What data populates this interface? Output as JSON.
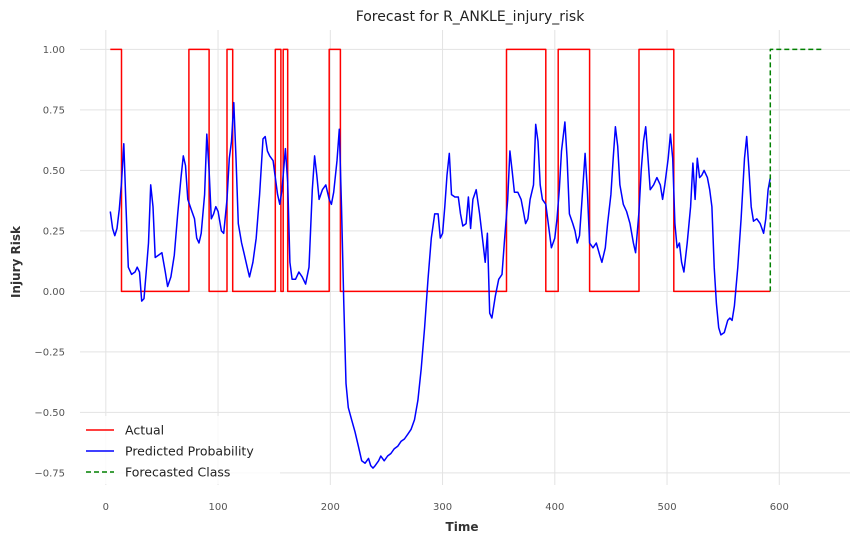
{
  "chart_data": {
    "type": "line",
    "title": "Forecast for R_ANKLE_injury_risk",
    "xlabel": "Time",
    "ylabel": "Injury Risk",
    "xlim": [
      -23,
      663
    ],
    "ylim": [
      -0.8,
      1.08
    ],
    "xticks": [
      0,
      100,
      200,
      300,
      400,
      500,
      600
    ],
    "xtick_labels": [
      "0",
      "100",
      "200",
      "300",
      "400",
      "500",
      "600"
    ],
    "yticks": [
      1.0,
      0.75,
      0.5,
      0.25,
      0.0,
      -0.25,
      -0.5,
      -0.75
    ],
    "ytick_labels": [
      "1.00",
      "0.75",
      "0.50",
      "0.25",
      "0.00",
      "−0.25",
      "−0.50",
      "−0.75"
    ],
    "grid": true,
    "legend_position": "lower-left",
    "series": [
      {
        "name": "Actual",
        "color": "#ff0000",
        "style": "solid",
        "step": true,
        "points": [
          [
            4,
            1
          ],
          [
            14,
            1
          ],
          [
            14,
            0
          ],
          [
            74,
            0
          ],
          [
            74,
            1
          ],
          [
            92,
            1
          ],
          [
            92,
            0
          ],
          [
            108,
            0
          ],
          [
            108,
            1
          ],
          [
            113,
            1
          ],
          [
            113,
            0
          ],
          [
            151,
            0
          ],
          [
            151,
            1
          ],
          [
            156,
            1
          ],
          [
            156,
            0
          ],
          [
            158,
            0
          ],
          [
            158,
            1
          ],
          [
            162,
            1
          ],
          [
            162,
            0
          ],
          [
            199,
            0
          ],
          [
            199,
            1
          ],
          [
            209,
            1
          ],
          [
            209,
            0
          ],
          [
            357,
            0
          ],
          [
            357,
            1
          ],
          [
            392,
            1
          ],
          [
            392,
            0
          ],
          [
            403,
            0
          ],
          [
            403,
            1
          ],
          [
            431,
            1
          ],
          [
            431,
            0
          ],
          [
            475,
            0
          ],
          [
            475,
            1
          ],
          [
            506,
            1
          ],
          [
            506,
            0
          ],
          [
            592,
            0
          ]
        ]
      },
      {
        "name": "Predicted Probability",
        "color": "#0000ff",
        "style": "solid",
        "step": false,
        "points": [
          [
            4,
            0.33
          ],
          [
            6,
            0.26
          ],
          [
            8,
            0.23
          ],
          [
            10,
            0.26
          ],
          [
            12,
            0.34
          ],
          [
            14,
            0.45
          ],
          [
            16,
            0.61
          ],
          [
            18,
            0.35
          ],
          [
            20,
            0.1
          ],
          [
            23,
            0.07
          ],
          [
            26,
            0.08
          ],
          [
            28,
            0.1
          ],
          [
            30,
            0.08
          ],
          [
            32,
            -0.04
          ],
          [
            34,
            -0.03
          ],
          [
            36,
            0.08
          ],
          [
            38,
            0.2
          ],
          [
            40,
            0.44
          ],
          [
            42,
            0.35
          ],
          [
            44,
            0.14
          ],
          [
            47,
            0.15
          ],
          [
            50,
            0.16
          ],
          [
            53,
            0.08
          ],
          [
            55,
            0.02
          ],
          [
            58,
            0.06
          ],
          [
            61,
            0.15
          ],
          [
            64,
            0.32
          ],
          [
            67,
            0.47
          ],
          [
            69,
            0.56
          ],
          [
            71,
            0.52
          ],
          [
            73,
            0.38
          ],
          [
            76,
            0.34
          ],
          [
            79,
            0.3
          ],
          [
            81,
            0.22
          ],
          [
            83,
            0.2
          ],
          [
            85,
            0.24
          ],
          [
            88,
            0.4
          ],
          [
            90,
            0.65
          ],
          [
            92,
            0.5
          ],
          [
            94,
            0.3
          ],
          [
            96,
            0.32
          ],
          [
            98,
            0.35
          ],
          [
            100,
            0.33
          ],
          [
            103,
            0.25
          ],
          [
            105,
            0.24
          ],
          [
            108,
            0.38
          ],
          [
            110,
            0.55
          ],
          [
            112,
            0.62
          ],
          [
            114,
            0.78
          ],
          [
            116,
            0.55
          ],
          [
            118,
            0.28
          ],
          [
            121,
            0.2
          ],
          [
            123,
            0.16
          ],
          [
            126,
            0.1
          ],
          [
            128,
            0.06
          ],
          [
            131,
            0.12
          ],
          [
            134,
            0.22
          ],
          [
            137,
            0.4
          ],
          [
            140,
            0.63
          ],
          [
            142,
            0.64
          ],
          [
            144,
            0.58
          ],
          [
            146,
            0.56
          ],
          [
            149,
            0.54
          ],
          [
            151,
            0.47
          ],
          [
            153,
            0.4
          ],
          [
            155,
            0.36
          ],
          [
            157,
            0.42
          ],
          [
            160,
            0.59
          ],
          [
            162,
            0.45
          ],
          [
            164,
            0.12
          ],
          [
            166,
            0.05
          ],
          [
            169,
            0.05
          ],
          [
            172,
            0.08
          ],
          [
            175,
            0.06
          ],
          [
            178,
            0.03
          ],
          [
            181,
            0.1
          ],
          [
            184,
            0.42
          ],
          [
            186,
            0.56
          ],
          [
            188,
            0.48
          ],
          [
            190,
            0.38
          ],
          [
            193,
            0.42
          ],
          [
            196,
            0.44
          ],
          [
            199,
            0.38
          ],
          [
            201,
            0.36
          ],
          [
            203,
            0.41
          ],
          [
            206,
            0.54
          ],
          [
            208,
            0.67
          ],
          [
            210,
            0.35
          ],
          [
            212,
            -0.05
          ],
          [
            214,
            -0.38
          ],
          [
            216,
            -0.48
          ],
          [
            219,
            -0.53
          ],
          [
            222,
            -0.58
          ],
          [
            225,
            -0.64
          ],
          [
            228,
            -0.7
          ],
          [
            231,
            -0.71
          ],
          [
            234,
            -0.69
          ],
          [
            236,
            -0.72
          ],
          [
            238,
            -0.73
          ],
          [
            240,
            -0.72
          ],
          [
            243,
            -0.7
          ],
          [
            245,
            -0.68
          ],
          [
            248,
            -0.7
          ],
          [
            251,
            -0.68
          ],
          [
            254,
            -0.67
          ],
          [
            257,
            -0.65
          ],
          [
            260,
            -0.64
          ],
          [
            263,
            -0.62
          ],
          [
            266,
            -0.61
          ],
          [
            269,
            -0.59
          ],
          [
            272,
            -0.57
          ],
          [
            275,
            -0.53
          ],
          [
            278,
            -0.45
          ],
          [
            281,
            -0.32
          ],
          [
            284,
            -0.15
          ],
          [
            287,
            0.05
          ],
          [
            290,
            0.22
          ],
          [
            293,
            0.32
          ],
          [
            296,
            0.32
          ],
          [
            298,
            0.22
          ],
          [
            300,
            0.24
          ],
          [
            302,
            0.35
          ],
          [
            304,
            0.48
          ],
          [
            306,
            0.57
          ],
          [
            308,
            0.4
          ],
          [
            311,
            0.39
          ],
          [
            314,
            0.39
          ],
          [
            316,
            0.32
          ],
          [
            318,
            0.27
          ],
          [
            321,
            0.28
          ],
          [
            323,
            0.39
          ],
          [
            325,
            0.26
          ],
          [
            327,
            0.38
          ],
          [
            330,
            0.42
          ],
          [
            333,
            0.32
          ],
          [
            336,
            0.2
          ],
          [
            338,
            0.12
          ],
          [
            340,
            0.24
          ],
          [
            342,
            -0.09
          ],
          [
            344,
            -0.11
          ],
          [
            347,
            -0.02
          ],
          [
            350,
            0.05
          ],
          [
            353,
            0.07
          ],
          [
            355,
            0.2
          ],
          [
            358,
            0.38
          ],
          [
            360,
            0.58
          ],
          [
            362,
            0.5
          ],
          [
            364,
            0.41
          ],
          [
            367,
            0.41
          ],
          [
            370,
            0.38
          ],
          [
            372,
            0.33
          ],
          [
            374,
            0.28
          ],
          [
            376,
            0.3
          ],
          [
            378,
            0.38
          ],
          [
            381,
            0.44
          ],
          [
            383,
            0.69
          ],
          [
            385,
            0.62
          ],
          [
            387,
            0.44
          ],
          [
            389,
            0.38
          ],
          [
            392,
            0.36
          ],
          [
            395,
            0.25
          ],
          [
            397,
            0.18
          ],
          [
            400,
            0.22
          ],
          [
            402,
            0.3
          ],
          [
            404,
            0.42
          ],
          [
            406,
            0.58
          ],
          [
            409,
            0.7
          ],
          [
            411,
            0.55
          ],
          [
            413,
            0.32
          ],
          [
            416,
            0.28
          ],
          [
            418,
            0.25
          ],
          [
            420,
            0.2
          ],
          [
            422,
            0.23
          ],
          [
            424,
            0.36
          ],
          [
            427,
            0.57
          ],
          [
            429,
            0.42
          ],
          [
            431,
            0.2
          ],
          [
            434,
            0.18
          ],
          [
            437,
            0.2
          ],
          [
            440,
            0.15
          ],
          [
            442,
            0.12
          ],
          [
            445,
            0.18
          ],
          [
            447,
            0.28
          ],
          [
            450,
            0.4
          ],
          [
            452,
            0.55
          ],
          [
            454,
            0.68
          ],
          [
            456,
            0.6
          ],
          [
            458,
            0.44
          ],
          [
            461,
            0.36
          ],
          [
            464,
            0.33
          ],
          [
            467,
            0.28
          ],
          [
            470,
            0.2
          ],
          [
            472,
            0.16
          ],
          [
            475,
            0.33
          ],
          [
            477,
            0.5
          ],
          [
            479,
            0.62
          ],
          [
            481,
            0.68
          ],
          [
            483,
            0.55
          ],
          [
            485,
            0.42
          ],
          [
            488,
            0.44
          ],
          [
            491,
            0.47
          ],
          [
            494,
            0.44
          ],
          [
            496,
            0.38
          ],
          [
            498,
            0.44
          ],
          [
            501,
            0.55
          ],
          [
            503,
            0.65
          ],
          [
            505,
            0.55
          ],
          [
            507,
            0.28
          ],
          [
            509,
            0.18
          ],
          [
            511,
            0.2
          ],
          [
            513,
            0.12
          ],
          [
            515,
            0.08
          ],
          [
            518,
            0.2
          ],
          [
            521,
            0.35
          ],
          [
            523,
            0.53
          ],
          [
            525,
            0.38
          ],
          [
            527,
            0.55
          ],
          [
            529,
            0.47
          ],
          [
            531,
            0.48
          ],
          [
            533,
            0.5
          ],
          [
            536,
            0.47
          ],
          [
            538,
            0.42
          ],
          [
            540,
            0.35
          ],
          [
            542,
            0.1
          ],
          [
            544,
            -0.05
          ],
          [
            546,
            -0.15
          ],
          [
            548,
            -0.18
          ],
          [
            551,
            -0.17
          ],
          [
            554,
            -0.12
          ],
          [
            556,
            -0.11
          ],
          [
            558,
            -0.12
          ],
          [
            560,
            -0.06
          ],
          [
            563,
            0.1
          ],
          [
            566,
            0.3
          ],
          [
            569,
            0.55
          ],
          [
            571,
            0.64
          ],
          [
            573,
            0.5
          ],
          [
            575,
            0.35
          ],
          [
            577,
            0.29
          ],
          [
            580,
            0.3
          ],
          [
            583,
            0.28
          ],
          [
            586,
            0.24
          ],
          [
            588,
            0.3
          ],
          [
            590,
            0.42
          ],
          [
            592,
            0.47
          ]
        ]
      },
      {
        "name": "Forecasted Class",
        "color": "#008000",
        "style": "dashed",
        "step": true,
        "points": [
          [
            592,
            0
          ],
          [
            592,
            1
          ],
          [
            640,
            1
          ]
        ]
      }
    ]
  }
}
